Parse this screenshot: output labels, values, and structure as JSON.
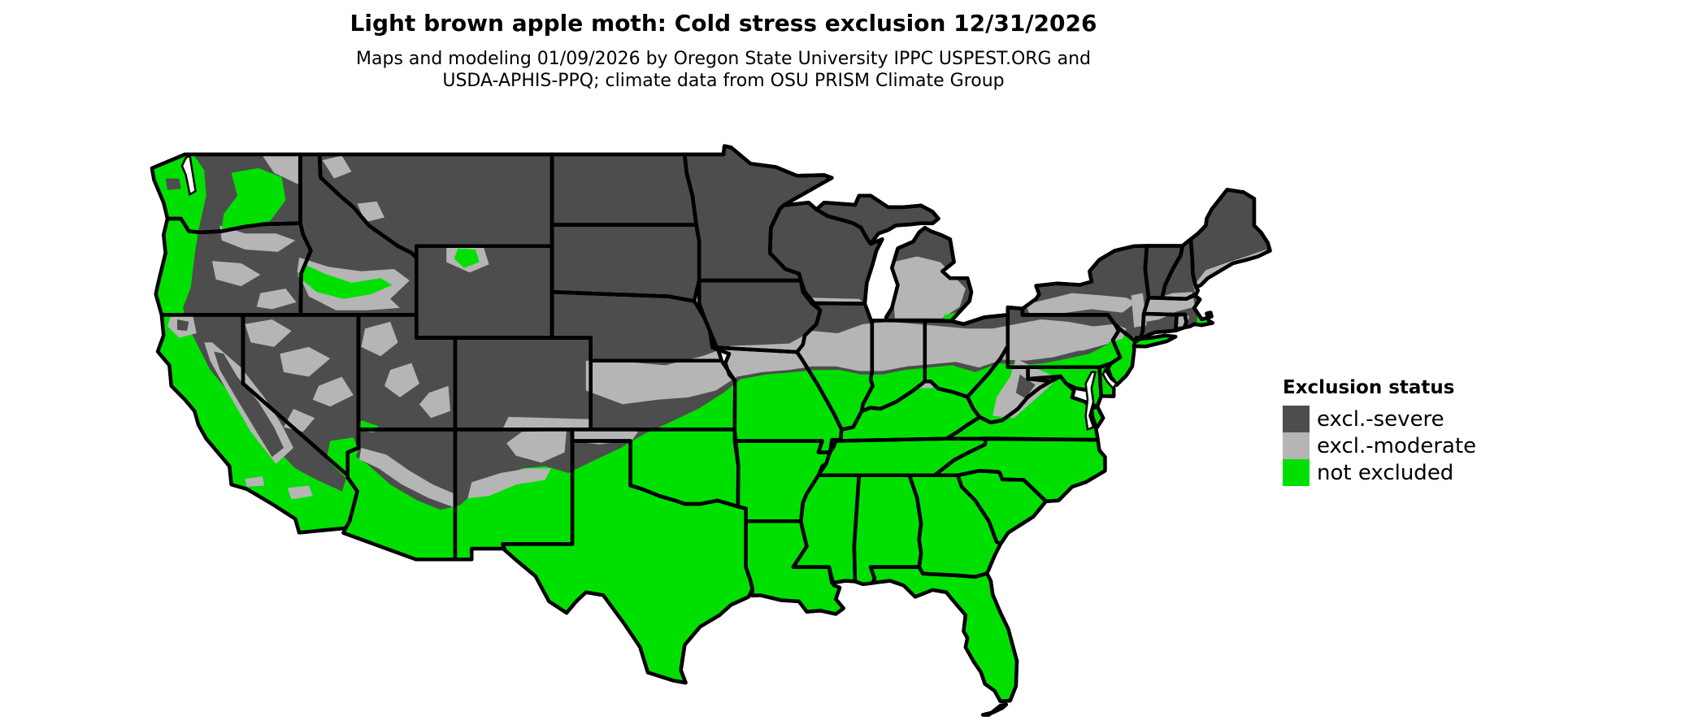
{
  "header": {
    "title": "Light brown apple moth: Cold stress exclusion 12/31/2026",
    "subtitle_line1": "Maps and modeling 01/09/2026 by Oregon State University IPPC USPEST.ORG and",
    "subtitle_line2": "USDA-APHIS-PPQ; climate data from OSU PRISM Climate Group"
  },
  "legend": {
    "title": "Exclusion status",
    "items": [
      {
        "key": "severe",
        "label": "excl.-severe",
        "color": "#4d4d4d"
      },
      {
        "key": "moderate",
        "label": "excl.-moderate",
        "color": "#b5b5b5"
      },
      {
        "key": "not_excluded",
        "label": "not excluded",
        "color": "#00e000"
      }
    ]
  },
  "map": {
    "border_color": "#000000",
    "background_color": "#ffffff",
    "water_color": "#ffffff"
  }
}
